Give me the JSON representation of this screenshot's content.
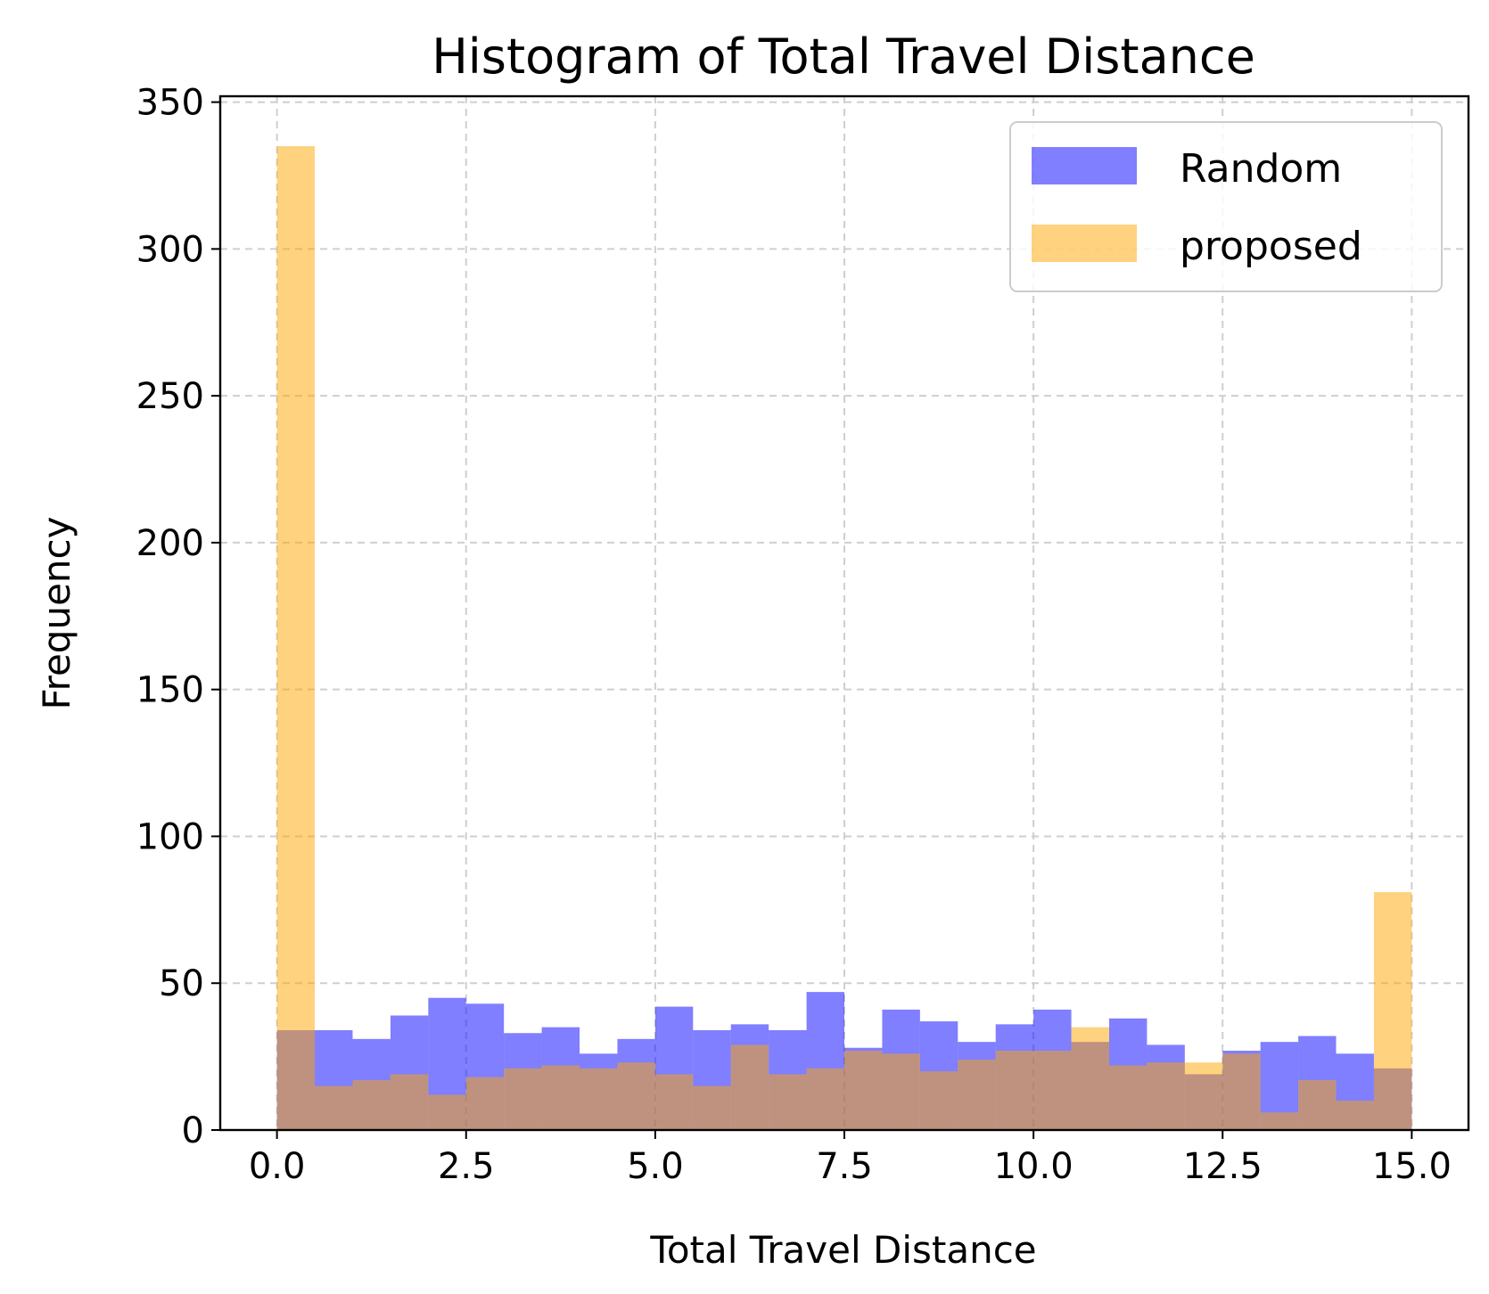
{
  "chart_data": {
    "type": "bar",
    "title": "Histogram of Total Travel Distance",
    "xlabel": "Total Travel Distance",
    "ylabel": "Frequency",
    "xlim": [
      -0.75,
      15.75
    ],
    "ylim": [
      0,
      352
    ],
    "xticks": [
      0.0,
      2.5,
      5.0,
      7.5,
      10.0,
      12.5,
      15.0
    ],
    "xtick_labels": [
      "0.0",
      "2.5",
      "5.0",
      "7.5",
      "10.0",
      "12.5",
      "15.0"
    ],
    "yticks": [
      0,
      50,
      100,
      150,
      200,
      250,
      300,
      350
    ],
    "ytick_labels": [
      "0",
      "50",
      "100",
      "150",
      "200",
      "250",
      "300",
      "350"
    ],
    "grid": true,
    "legend_position": "top-right",
    "bin_edges": [
      0,
      0.5,
      1,
      1.5,
      2,
      2.5,
      3,
      3.5,
      4,
      4.5,
      5,
      5.5,
      6,
      6.5,
      7,
      7.5,
      8,
      8.5,
      9,
      9.5,
      10,
      10.5,
      11,
      11.5,
      12,
      12.5,
      13,
      13.5,
      14,
      14.5,
      15
    ],
    "series": [
      {
        "name": "Random",
        "color": "#0000ff",
        "opacity": 0.5,
        "values": [
          34,
          34,
          31,
          39,
          45,
          43,
          33,
          35,
          26,
          31,
          42,
          34,
          36,
          34,
          47,
          28,
          41,
          37,
          30,
          36,
          41,
          30,
          38,
          29,
          19,
          27,
          30,
          32,
          26,
          21
        ]
      },
      {
        "name": "proposed",
        "color": "#ffa500",
        "opacity": 0.5,
        "values": [
          335,
          15,
          17,
          19,
          12,
          18,
          21,
          22,
          21,
          23,
          19,
          15,
          29,
          19,
          21,
          27,
          26,
          20,
          24,
          27,
          27,
          35,
          22,
          23,
          23,
          26,
          6,
          17,
          10,
          81
        ]
      }
    ]
  }
}
